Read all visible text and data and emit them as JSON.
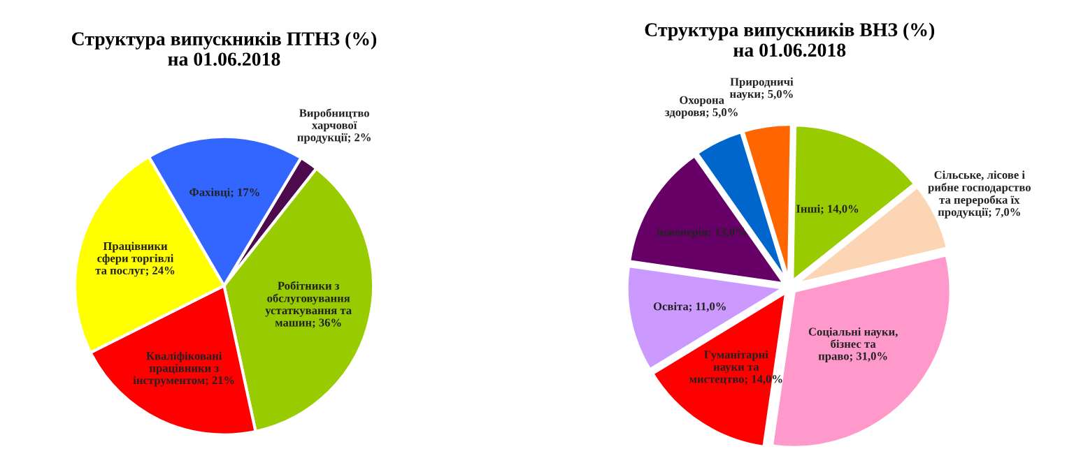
{
  "chart_data": [
    {
      "type": "pie",
      "title": "Структура випускників ПТНЗ (%)\nна 01.06.2018",
      "categories": [
        "Виробництво харчової продукції",
        "Робітники з обслуговування устаткування та машин",
        "Кваліфіковані працівники з інструментом",
        "Працівники сфери торгівлі та послуг",
        "Фахівці"
      ],
      "values": [
        2,
        36,
        21,
        24,
        17
      ],
      "colors": [
        "#4d0a4d",
        "#99cc00",
        "#ff0000",
        "#ffff00",
        "#3366ff"
      ],
      "value_labels": [
        "2%",
        "36%",
        "21%",
        "24%",
        "17%"
      ]
    },
    {
      "type": "pie",
      "title": "Структура випускників ВНЗ (%)\nна 01.06.2018",
      "categories": [
        "Інші",
        "Сільське, лісове і рибне господарство та переробка їх продукції",
        "Соціальні науки, бізнес та право",
        "Гуманітарні науки та мистецтво",
        "Освіта",
        "інженерія",
        "Охорона здоровя",
        "Природничі науки"
      ],
      "values": [
        14.0,
        7.0,
        31.0,
        14.0,
        11.0,
        13.0,
        5.0,
        5.0
      ],
      "colors": [
        "#99cc00",
        "#fcd5b4",
        "#ff99cc",
        "#ff0000",
        "#cc99ff",
        "#660066",
        "#0066cc",
        "#ff6600"
      ],
      "value_labels": [
        "14,0%",
        "7,0%",
        "31,0%",
        "14,0%",
        "11,0%",
        "13,0%",
        "5,0%",
        "5,0%"
      ]
    }
  ]
}
